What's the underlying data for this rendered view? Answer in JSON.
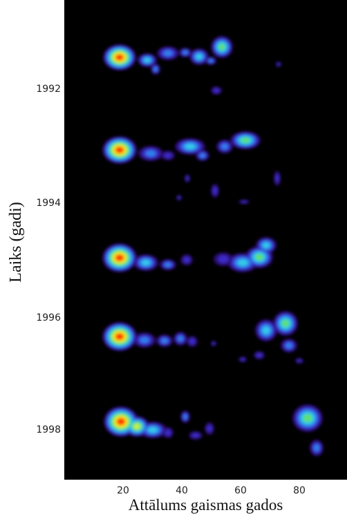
{
  "figure": {
    "ylabel": "Laiks (gadi)",
    "xlabel": "Attālums gaismas gados",
    "yticks": [
      "1992",
      "1994",
      "1996",
      "1998"
    ],
    "xticks": [
      "20",
      "40",
      "60",
      "80"
    ]
  },
  "colormap": [
    "#2a0a6e",
    "#3a2cc8",
    "#2f80ee",
    "#35c8e8",
    "#5de070",
    "#c8f040",
    "#ffd400",
    "#ff3300"
  ]
}
